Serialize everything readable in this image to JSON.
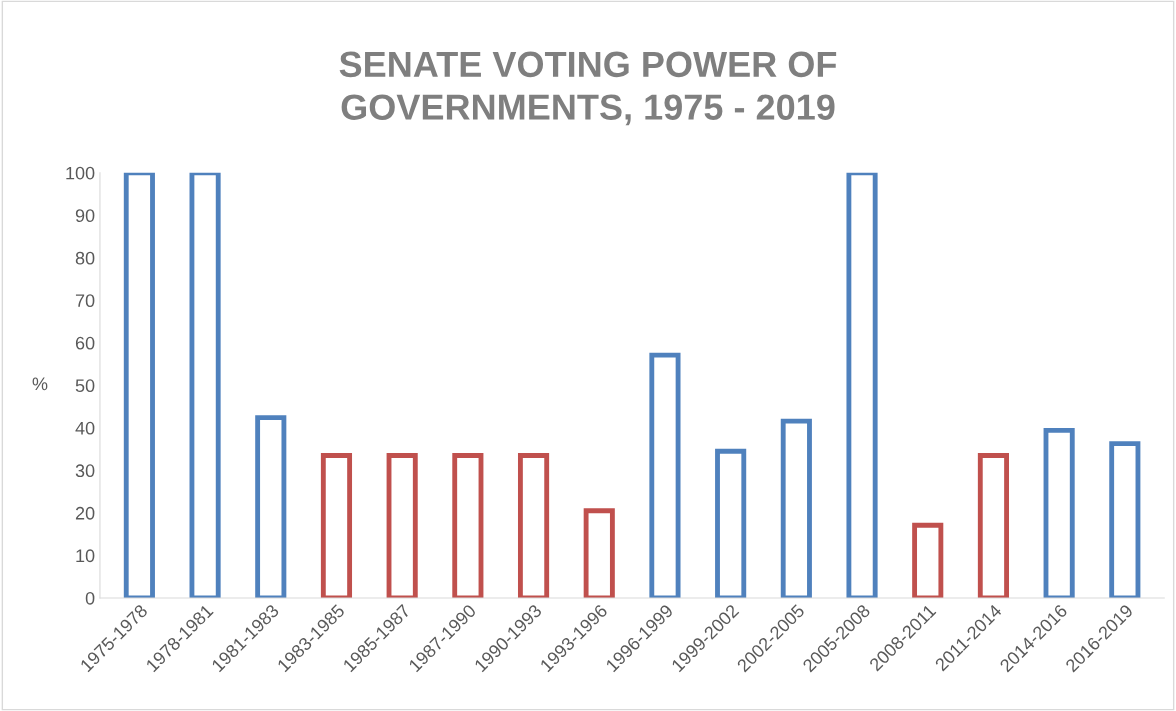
{
  "chart_data": {
    "type": "bar",
    "title": "SENATE VOTING POWER OF\nGOVERNMENTS, 1975 - 2019",
    "ylabel": "%",
    "categories": [
      "1975-1978",
      "1978-1981",
      "1981-1983",
      "1983-1985",
      "1985-1987",
      "1987-1990",
      "1990-1993",
      "1993-1996",
      "1996-1999",
      "1999-2002",
      "2002-2005",
      "2005-2008",
      "2008-2011",
      "2011-2014",
      "2014-2016",
      "2016-2019"
    ],
    "values": [
      100,
      100,
      42.4,
      33.5,
      33.5,
      33.5,
      33.5,
      20.5,
      57.1,
      34.5,
      41.6,
      100,
      17.1,
      33.5,
      39.4,
      36.3
    ],
    "colors": [
      "#4f81bd",
      "#4f81bd",
      "#4f81bd",
      "#c0504d",
      "#c0504d",
      "#c0504d",
      "#c0504d",
      "#c0504d",
      "#4f81bd",
      "#4f81bd",
      "#4f81bd",
      "#4f81bd",
      "#c0504d",
      "#c0504d",
      "#4f81bd",
      "#4f81bd"
    ],
    "ylim": [
      0,
      100
    ],
    "yticks": [
      0,
      10,
      20,
      30,
      40,
      50,
      60,
      70,
      80,
      90,
      100
    ],
    "grid": false
  }
}
